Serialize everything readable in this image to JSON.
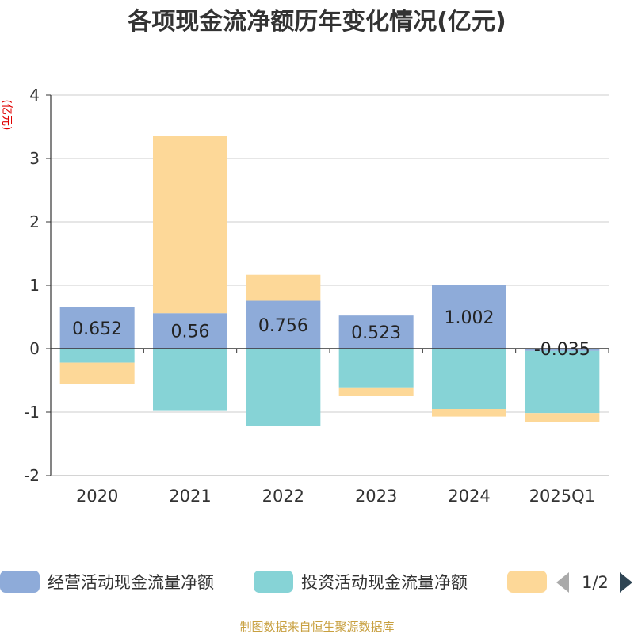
{
  "chart_data": {
    "type": "bar",
    "stacked": true,
    "title": "各项现金流净额历年变化情况(亿元)",
    "ylabel": "(亿元)",
    "ylim": [
      -2,
      4
    ],
    "yticks": [
      4,
      3,
      2,
      1,
      0,
      -1,
      -2
    ],
    "grid": true,
    "legend_position": "bottom",
    "categories": [
      "2020",
      "2021",
      "2022",
      "2023",
      "2024",
      "2025Q1"
    ],
    "series": [
      {
        "name": "经营活动现金流量净额",
        "color": "#8eabd9",
        "values": [
          0.652,
          0.56,
          0.756,
          0.523,
          1.002,
          -0.035
        ],
        "labels": [
          "0.652",
          "0.56",
          "0.756",
          "0.523",
          "1.002",
          "-0.035"
        ]
      },
      {
        "name": "投资活动现金流量净额",
        "color": "#86d3d6",
        "values": [
          -0.22,
          -0.97,
          -1.22,
          -0.61,
          -0.95,
          -0.98
        ]
      },
      {
        "name": "",
        "color": "#fdd898",
        "values": [
          -0.33,
          2.8,
          0.41,
          -0.14,
          -0.12,
          -0.14
        ]
      }
    ],
    "legend_page": "1/2",
    "source": "制图数据来自恒生聚源数据库"
  }
}
